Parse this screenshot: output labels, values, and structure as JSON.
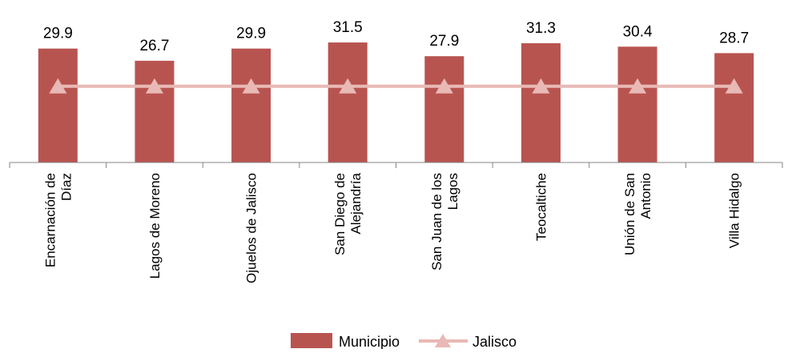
{
  "chart_data": {
    "type": "bar",
    "categories": [
      [
        "Encarnación de",
        "Díaz"
      ],
      [
        "Lagos de Moreno"
      ],
      [
        "Ojuelos de Jalisco"
      ],
      [
        "San Diego de",
        "Alejandría"
      ],
      [
        "San Juan de los",
        "Lagos"
      ],
      [
        "Teocaltiche"
      ],
      [
        "Unión de San",
        "Antonio"
      ],
      [
        "Villa Hidalgo"
      ]
    ],
    "series": [
      {
        "name": "Municipio",
        "type": "bar",
        "color": "#b85450",
        "values": [
          29.9,
          26.7,
          29.9,
          31.5,
          27.9,
          31.3,
          30.4,
          28.7
        ],
        "data_labels": [
          "29.9",
          "26.7",
          "29.9",
          "31.5",
          "27.9",
          "31.3",
          "30.4",
          "28.7"
        ]
      },
      {
        "name": "Jalisco",
        "type": "line",
        "marker": "triangle",
        "color": "#e8b9b5",
        "values": [
          20.0,
          20.0,
          20.0,
          20.0,
          20.0,
          20.0,
          20.0,
          20.0
        ]
      }
    ],
    "ylim": [
      0,
      35
    ],
    "grid": false,
    "legend_position": "bottom"
  }
}
